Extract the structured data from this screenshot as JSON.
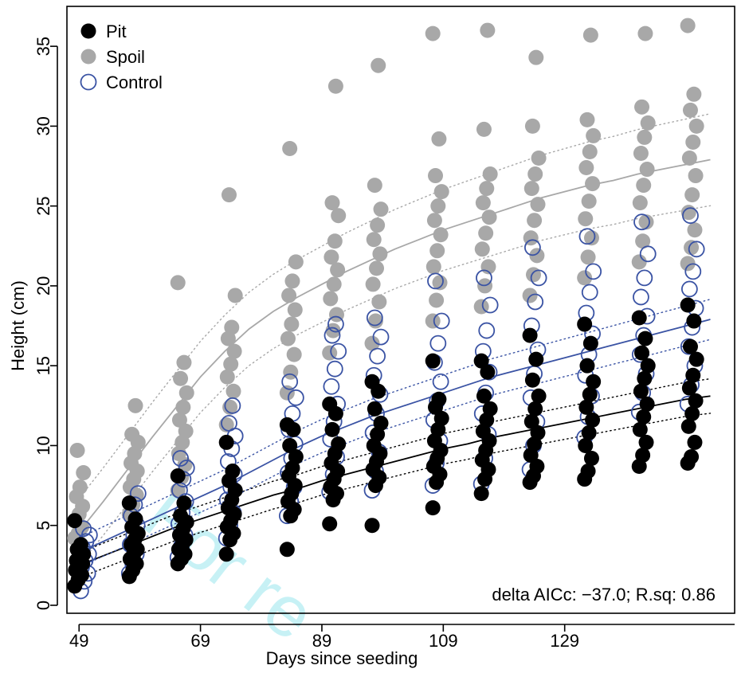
{
  "chart_data": {
    "type": "scatter",
    "xlabel": "Days since seeding",
    "ylabel": "Height (cm)",
    "xlim": [
      47,
      157
    ],
    "ylim": [
      -0.5,
      37.5
    ],
    "xticks": [
      49,
      69,
      89,
      109,
      129
    ],
    "yticks": [
      0,
      5,
      10,
      15,
      20,
      25,
      30,
      35
    ],
    "legend_placement": "top-left",
    "grid": false,
    "annotation": "delta AICc: −37.0; R.sq: 0.86",
    "watermark": "For re",
    "legend": [
      {
        "key": "pit",
        "label": "Pit",
        "marker": "filled",
        "color": "#000000"
      },
      {
        "key": "spoil",
        "label": "Spoil",
        "marker": "filled",
        "color": "#a8a8a8"
      },
      {
        "key": "control",
        "label": "Control",
        "marker": "open",
        "color": "#3a53a4"
      }
    ],
    "series": [
      {
        "name": "Pit",
        "key": "pit",
        "color": "#000000",
        "marker": "filled",
        "curve": {
          "days": [
            49,
            53,
            57,
            61,
            65,
            69,
            73,
            77,
            81,
            85,
            89,
            93,
            97,
            101,
            105,
            109,
            113,
            117,
            121,
            125,
            129,
            133,
            137,
            141,
            145,
            149,
            153
          ],
          "fit": [
            2.5,
            3.1,
            3.7,
            4.3,
            4.9,
            5.4,
            5.9,
            6.4,
            6.9,
            7.3,
            7.8,
            8.2,
            8.6,
            9.0,
            9.4,
            9.8,
            10.1,
            10.5,
            10.8,
            11.1,
            11.4,
            11.7,
            12.0,
            12.3,
            12.6,
            12.9,
            13.1
          ]
        },
        "groups": [
          {
            "day": 49,
            "heights": [
              1.2,
              1.6,
              1.9,
              2.2,
              2.4,
              2.6,
              2.8,
              3.0,
              3.2,
              3.5,
              3.8,
              5.3
            ]
          },
          {
            "day": 58,
            "heights": [
              1.8,
              2.2,
              2.6,
              2.9,
              3.2,
              3.5,
              3.8,
              4.1,
              4.5,
              4.9,
              5.4,
              6.4
            ]
          },
          {
            "day": 66,
            "heights": [
              2.6,
              2.9,
              3.2,
              3.5,
              3.8,
              4.1,
              4.4,
              4.8,
              5.2,
              5.6,
              6.4,
              8.1
            ]
          },
          {
            "day": 74,
            "heights": [
              3.2,
              4.1,
              4.5,
              4.9,
              5.3,
              5.7,
              6.1,
              6.6,
              7.2,
              7.8,
              8.4,
              10.2
            ]
          },
          {
            "day": 84,
            "heights": [
              3.5,
              5.6,
              6.0,
              6.5,
              7.0,
              7.5,
              8.1,
              8.6,
              9.3,
              10.0,
              11.0,
              11.3
            ]
          },
          {
            "day": 91,
            "heights": [
              5.1,
              6.6,
              7.0,
              7.4,
              7.9,
              8.4,
              8.9,
              9.5,
              10.1,
              11.0,
              12.0,
              12.6
            ]
          },
          {
            "day": 98,
            "heights": [
              5.0,
              7.5,
              8.0,
              8.5,
              9.0,
              9.5,
              10.0,
              10.7,
              11.4,
              12.3,
              13.4,
              14.0
            ]
          },
          {
            "day": 108,
            "heights": [
              6.1,
              7.7,
              8.2,
              8.7,
              9.2,
              9.7,
              10.3,
              11.0,
              11.7,
              12.4,
              12.9,
              15.3
            ]
          },
          {
            "day": 116,
            "heights": [
              7.0,
              7.9,
              8.5,
              9.1,
              9.7,
              10.3,
              10.9,
              11.6,
              12.3,
              13.1,
              14.6,
              15.3
            ]
          },
          {
            "day": 124,
            "heights": [
              7.7,
              8.1,
              8.7,
              9.4,
              10.1,
              10.8,
              11.5,
              12.3,
              13.1,
              14.1,
              15.4,
              16.9
            ]
          },
          {
            "day": 133,
            "heights": [
              7.9,
              8.4,
              9.2,
              10.0,
              10.8,
              11.6,
              12.4,
              13.2,
              14.0,
              15.0,
              16.4,
              17.6
            ]
          },
          {
            "day": 142,
            "heights": [
              8.7,
              9.4,
              10.2,
              11.0,
              11.8,
              12.6,
              13.4,
              14.2,
              15.0,
              15.8,
              16.7,
              18.0
            ]
          },
          {
            "day": 150,
            "heights": [
              8.9,
              9.3,
              10.2,
              11.2,
              12.0,
              12.8,
              13.6,
              14.4,
              15.4,
              16.2,
              17.8,
              18.8
            ]
          }
        ]
      },
      {
        "name": "Spoil",
        "key": "spoil",
        "color": "#a8a8a8",
        "marker": "filled",
        "curve": {
          "days": [
            49,
            53,
            57,
            61,
            65,
            69,
            73,
            77,
            81,
            85,
            89,
            93,
            97,
            101,
            105,
            109,
            113,
            117,
            121,
            125,
            129,
            133,
            137,
            141,
            145,
            149,
            153
          ],
          "fit": [
            4.6,
            6.5,
            8.5,
            10.5,
            12.4,
            14.3,
            15.9,
            17.3,
            18.4,
            19.3,
            20.1,
            20.9,
            21.6,
            22.3,
            22.9,
            23.5,
            24.0,
            24.5,
            25.0,
            25.5,
            25.9,
            26.3,
            26.6,
            27.0,
            27.3,
            27.6,
            27.9
          ]
        },
        "groups": [
          {
            "day": 49,
            "heights": [
              4.2,
              4.5,
              4.9,
              5.3,
              5.7,
              6.2,
              6.8,
              7.4,
              8.3,
              9.7
            ]
          },
          {
            "day": 58,
            "heights": [
              5.7,
              6.3,
              6.9,
              7.4,
              7.9,
              8.4,
              8.9,
              9.5,
              10.2,
              10.7,
              12.5
            ]
          },
          {
            "day": 66,
            "heights": [
              7.2,
              8.0,
              8.8,
              9.5,
              10.2,
              10.9,
              11.6,
              12.4,
              13.3,
              14.2,
              15.2,
              20.2
            ]
          },
          {
            "day": 74,
            "heights": [
              11.3,
              12.4,
              13.4,
              14.3,
              15.1,
              15.9,
              16.7,
              17.4,
              19.4,
              25.7
            ]
          },
          {
            "day": 84,
            "heights": [
              13.3,
              14.6,
              15.7,
              16.7,
              17.6,
              18.5,
              19.4,
              20.3,
              21.5,
              28.6
            ]
          },
          {
            "day": 91,
            "heights": [
              15.8,
              17.2,
              18.2,
              19.2,
              20.1,
              21.0,
              21.8,
              22.8,
              24.4,
              25.2,
              32.5
            ]
          },
          {
            "day": 98,
            "heights": [
              16.4,
              17.8,
              19.0,
              20.1,
              21.1,
              22.0,
              22.9,
              23.8,
              24.8,
              26.3,
              33.8
            ]
          },
          {
            "day": 108,
            "heights": [
              17.8,
              19.1,
              20.2,
              21.2,
              22.2,
              23.2,
              24.1,
              25.0,
              25.9,
              26.9,
              29.2,
              35.8
            ]
          },
          {
            "day": 116,
            "heights": [
              18.7,
              20.0,
              21.2,
              22.3,
              23.3,
              24.3,
              25.2,
              26.1,
              27.0,
              29.8,
              36.0
            ]
          },
          {
            "day": 124,
            "heights": [
              19.4,
              20.7,
              21.9,
              23.0,
              24.1,
              25.1,
              26.1,
              27.0,
              28.0,
              30.0,
              34.3
            ]
          },
          {
            "day": 133,
            "heights": [
              20.5,
              21.8,
              23.0,
              24.2,
              25.3,
              26.4,
              27.4,
              28.4,
              29.4,
              30.4,
              35.7
            ]
          },
          {
            "day": 142,
            "heights": [
              21.5,
              22.8,
              24.0,
              25.2,
              26.3,
              27.3,
              28.3,
              29.3,
              30.2,
              31.2,
              35.8
            ]
          },
          {
            "day": 150,
            "heights": [
              21.4,
              22.4,
              23.5,
              24.6,
              25.7,
              26.9,
              28.0,
              29.0,
              30.0,
              31.0,
              32.0,
              36.3
            ]
          }
        ]
      },
      {
        "name": "Control",
        "key": "control",
        "color": "#3a53a4",
        "marker": "open",
        "curve": {
          "days": [
            49,
            53,
            57,
            61,
            65,
            69,
            73,
            77,
            81,
            85,
            89,
            93,
            97,
            101,
            105,
            109,
            113,
            117,
            121,
            125,
            129,
            133,
            137,
            141,
            145,
            149,
            153
          ],
          "fit": [
            3.3,
            4.0,
            4.7,
            5.4,
            6.1,
            6.8,
            7.5,
            8.3,
            9.1,
            9.9,
            10.6,
            11.2,
            11.8,
            12.3,
            12.8,
            13.3,
            13.8,
            14.3,
            14.7,
            15.1,
            15.5,
            15.9,
            16.3,
            16.7,
            17.1,
            17.5,
            17.9
          ]
        },
        "groups": [
          {
            "day": 50,
            "heights": [
              0.9,
              1.5,
              2.0,
              2.4,
              2.8,
              3.2,
              3.6,
              4.0,
              4.4,
              4.8
            ]
          },
          {
            "day": 58,
            "heights": [
              2.0,
              2.6,
              3.2,
              3.8,
              4.4,
              5.0,
              5.6,
              6.3,
              7.0
            ]
          },
          {
            "day": 66,
            "heights": [
              3.0,
              3.7,
              4.4,
              5.1,
              5.8,
              6.5,
              7.2,
              7.9,
              8.6,
              9.2
            ]
          },
          {
            "day": 74,
            "heights": [
              4.2,
              5.0,
              5.8,
              6.6,
              7.4,
              8.2,
              9.0,
              9.8,
              10.6,
              11.4,
              12.5
            ]
          },
          {
            "day": 84,
            "heights": [
              5.6,
              6.5,
              7.4,
              8.3,
              9.2,
              10.1,
              11.0,
              12.0,
              13.0,
              14.0
            ]
          },
          {
            "day": 91,
            "heights": [
              7.1,
              8.2,
              9.3,
              10.4,
              11.5,
              12.6,
              13.7,
              14.8,
              15.9,
              16.9,
              17.6
            ]
          },
          {
            "day": 98,
            "heights": [
              7.2,
              8.4,
              9.6,
              10.8,
              12.0,
              13.2,
              14.4,
              15.6,
              16.8,
              18.0
            ]
          },
          {
            "day": 108,
            "heights": [
              7.5,
              8.9,
              10.3,
              11.6,
              12.8,
              14.0,
              15.2,
              16.4,
              17.8,
              20.3
            ]
          },
          {
            "day": 116,
            "heights": [
              7.6,
              9.2,
              10.7,
              12.0,
              13.3,
              14.6,
              15.9,
              17.2,
              18.8,
              20.5
            ]
          },
          {
            "day": 124,
            "heights": [
              8.5,
              10.0,
              11.5,
              13.0,
              14.5,
              16.0,
              17.5,
              19.0,
              20.5,
              22.4
            ]
          },
          {
            "day": 133,
            "heights": [
              10.5,
              11.8,
              13.1,
              14.4,
              15.7,
              17.0,
              18.3,
              19.6,
              20.9,
              23.1
            ]
          },
          {
            "day": 142,
            "heights": [
              12.1,
              13.3,
              14.5,
              15.7,
              16.9,
              18.1,
              19.3,
              20.5,
              22.0,
              24.0
            ]
          },
          {
            "day": 150,
            "heights": [
              12.6,
              13.8,
              15.0,
              16.2,
              17.4,
              18.6,
              19.8,
              20.9,
              22.3,
              24.4
            ]
          }
        ]
      }
    ]
  }
}
